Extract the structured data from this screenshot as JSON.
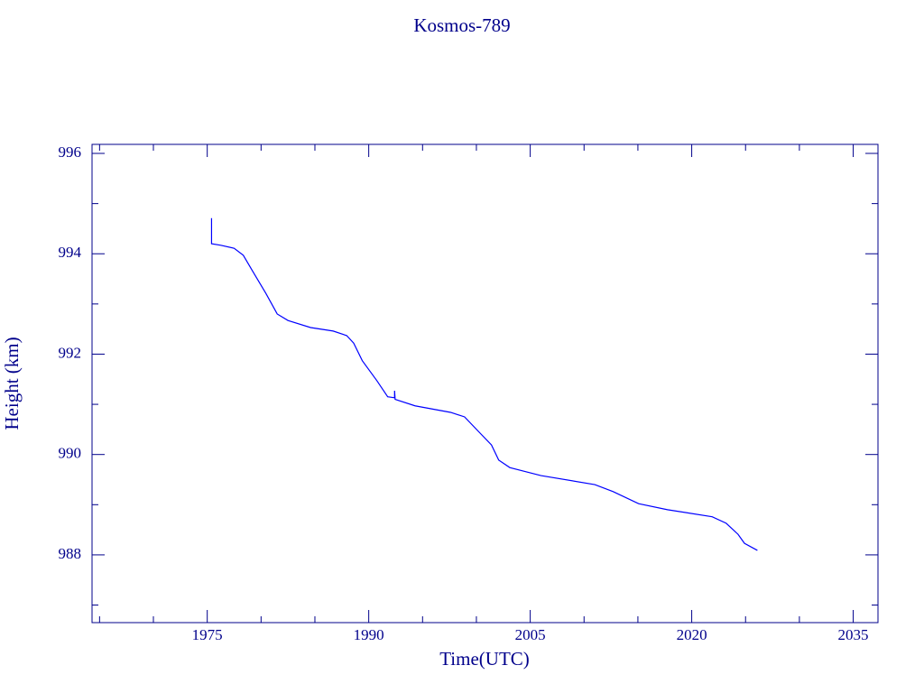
{
  "chart_data": {
    "type": "line",
    "title": "Kosmos-789",
    "x_label": "Time(UTC)",
    "y_label": "Height (km)",
    "x": [
      1975.4,
      1975.4,
      1976.26,
      1977.5,
      1978.35,
      1979.2,
      1980.45,
      1981.5,
      1982.5,
      1984.6,
      1986.7,
      1987.95,
      1988.6,
      1989.4,
      1990.76,
      1991.76,
      1992.4,
      1992.4,
      1992.45,
      1994.3,
      1997.6,
      1998.9,
      2000.1,
      2001.4,
      2002.07,
      2003.1,
      2006.0,
      2011.0,
      2012.7,
      2015.07,
      2017.75,
      2021.9,
      2023.2,
      2024.3,
      2024.9,
      2026.1
    ],
    "series": [
      {
        "name": "Height",
        "color": "#0000ff",
        "values": [
          994.71,
          994.2,
          994.17,
          994.11,
          993.97,
          993.66,
          993.21,
          992.8,
          992.67,
          992.53,
          992.46,
          992.37,
          992.22,
          991.87,
          991.47,
          991.15,
          991.13,
          991.27,
          991.1,
          990.97,
          990.84,
          990.75,
          990.48,
          990.19,
          989.89,
          989.74,
          989.58,
          989.4,
          989.26,
          989.02,
          988.9,
          988.76,
          988.63,
          988.41,
          988.23,
          988.09
        ]
      }
    ],
    "xlim": [
      1964.3,
      2037.3
    ],
    "ylim": [
      986.65,
      996.18
    ],
    "xticks": [
      1975,
      1990,
      2005,
      2020,
      2035
    ],
    "yticks": [
      988,
      990,
      992,
      994,
      996
    ],
    "xminorticks": [
      1965,
      1970,
      1980,
      1985,
      1995,
      2000,
      2010,
      2015,
      2025,
      2030
    ],
    "yminorticks": [
      987,
      989,
      991,
      993,
      995
    ],
    "axis_color": "#00008b"
  }
}
